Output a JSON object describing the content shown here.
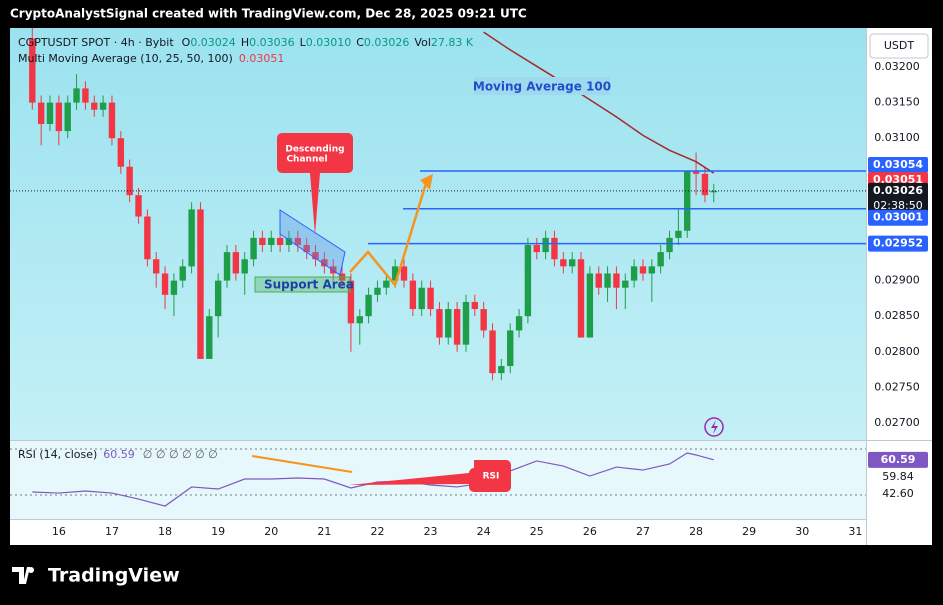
{
  "header": {
    "title": "CryptoAnalystSignal created with TradingView.com, Dec 28, 2025 09:21 UTC",
    "brand": "TradingView"
  },
  "chart_data": {
    "type": "candlestick",
    "symbol": "CGPTUSDT SPOT · 4h · Bybit",
    "ohlc_legend": [
      {
        "key": "O",
        "value": "0.03024"
      },
      {
        "key": "H",
        "value": "0.03036"
      },
      {
        "key": "L",
        "value": "0.03010"
      },
      {
        "key": "C",
        "value": "0.03026"
      },
      {
        "key": "Vol",
        "value": "27.83 K"
      }
    ],
    "indicator": "Multi Moving Average (10, 25, 50, 100)",
    "indicator_value": "0.03051",
    "currency": "USDT",
    "up_color": "#1f9e49",
    "down_color": "#f23645",
    "x": [
      15.5,
      15.667,
      15.833,
      16,
      16.167,
      16.333,
      16.5,
      16.667,
      16.833,
      17,
      17.167,
      17.333,
      17.5,
      17.667,
      17.833,
      18,
      18.167,
      18.333,
      18.5,
      18.667,
      18.833,
      19,
      19.167,
      19.333,
      19.5,
      19.667,
      19.833,
      20,
      20.167,
      20.333,
      20.5,
      20.667,
      20.833,
      21,
      21.167,
      21.333,
      21.5,
      21.667,
      21.833,
      22,
      22.167,
      22.333,
      22.5,
      22.667,
      22.833,
      23,
      23.167,
      23.333,
      23.5,
      23.667,
      23.833,
      24,
      24.167,
      24.333,
      24.5,
      24.667,
      24.833,
      25,
      25.167,
      25.333,
      25.5,
      25.667,
      25.833,
      26,
      26.167,
      26.333,
      26.5,
      26.667,
      26.833,
      27,
      27.167,
      27.333,
      27.5,
      27.667,
      27.833,
      28,
      28.167,
      28.333
    ],
    "open": [
      0.0324,
      0.0315,
      0.0312,
      0.0315,
      0.0311,
      0.0315,
      0.0317,
      0.0315,
      0.0314,
      0.0315,
      0.031,
      0.0306,
      0.0302,
      0.0299,
      0.0293,
      0.0291,
      0.0288,
      0.029,
      0.0292,
      0.03,
      0.0279,
      0.0285,
      0.029,
      0.0294,
      0.0291,
      0.0293,
      0.0296,
      0.0295,
      0.0296,
      0.0295,
      0.0296,
      0.0295,
      0.0294,
      0.0293,
      0.0292,
      0.0291,
      0.029,
      0.0284,
      0.0285,
      0.0288,
      0.0289,
      0.029,
      0.0292,
      0.029,
      0.0286,
      0.0289,
      0.0286,
      0.0282,
      0.0286,
      0.0281,
      0.0287,
      0.0286,
      0.0283,
      0.0277,
      0.0278,
      0.0283,
      0.0285,
      0.0295,
      0.0294,
      0.0296,
      0.0293,
      0.0292,
      0.0293,
      0.0282,
      0.0291,
      0.0289,
      0.0291,
      0.0289,
      0.029,
      0.0292,
      0.0291,
      0.0292,
      0.0294,
      0.0296,
      0.0297,
      0.03054,
      0.0305,
      0.03024
    ],
    "high": [
      0.03255,
      0.0316,
      0.0316,
      0.0316,
      0.0316,
      0.0319,
      0.0318,
      0.0316,
      0.0316,
      0.0316,
      0.0311,
      0.0307,
      0.0303,
      0.03,
      0.0294,
      0.0292,
      0.0291,
      0.0293,
      0.0301,
      0.0301,
      0.0286,
      0.0291,
      0.0295,
      0.0295,
      0.0294,
      0.0297,
      0.0297,
      0.0297,
      0.0297,
      0.0297,
      0.0297,
      0.0296,
      0.0295,
      0.0294,
      0.0293,
      0.0292,
      0.0291,
      0.0286,
      0.0289,
      0.029,
      0.0291,
      0.0293,
      0.0293,
      0.0291,
      0.029,
      0.029,
      0.0287,
      0.0287,
      0.0287,
      0.0288,
      0.0288,
      0.0287,
      0.0284,
      0.0279,
      0.0284,
      0.0286,
      0.0296,
      0.0296,
      0.0297,
      0.0297,
      0.0294,
      0.0294,
      0.0294,
      0.0292,
      0.0292,
      0.0292,
      0.0292,
      0.0291,
      0.0293,
      0.0293,
      0.0293,
      0.0295,
      0.0297,
      0.03,
      0.03054,
      0.0308,
      0.0306,
      0.03036
    ],
    "low": [
      0.0314,
      0.0309,
      0.0311,
      0.0309,
      0.031,
      0.0314,
      0.0314,
      0.0313,
      0.0313,
      0.0309,
      0.0305,
      0.0301,
      0.0298,
      0.0292,
      0.0289,
      0.0286,
      0.0285,
      0.0289,
      0.0291,
      0.0279,
      0.0279,
      0.0282,
      0.0289,
      0.029,
      0.0288,
      0.0292,
      0.0294,
      0.0294,
      0.0294,
      0.0294,
      0.0294,
      0.0293,
      0.0292,
      0.0291,
      0.029,
      0.0289,
      0.028,
      0.0281,
      0.0284,
      0.0287,
      0.0288,
      0.0289,
      0.0289,
      0.0285,
      0.0285,
      0.0285,
      0.0281,
      0.0281,
      0.028,
      0.028,
      0.0285,
      0.0282,
      0.0276,
      0.0276,
      0.0277,
      0.0282,
      0.0284,
      0.0293,
      0.0293,
      0.0292,
      0.0291,
      0.0291,
      0.0282,
      0.0282,
      0.0288,
      0.0287,
      0.0286,
      0.0286,
      0.0289,
      0.029,
      0.0287,
      0.0291,
      0.0293,
      0.0295,
      0.0296,
      0.0302,
      0.0301,
      0.0301
    ],
    "close": [
      0.0315,
      0.0312,
      0.0315,
      0.0311,
      0.0315,
      0.0317,
      0.0315,
      0.0314,
      0.0315,
      0.031,
      0.0306,
      0.0302,
      0.0299,
      0.0293,
      0.0291,
      0.0288,
      0.029,
      0.0292,
      0.03,
      0.0279,
      0.0285,
      0.029,
      0.0294,
      0.0291,
      0.0293,
      0.0296,
      0.0295,
      0.0296,
      0.0295,
      0.0296,
      0.0295,
      0.0294,
      0.0293,
      0.0292,
      0.0291,
      0.029,
      0.0284,
      0.0285,
      0.0288,
      0.0289,
      0.029,
      0.0292,
      0.029,
      0.0286,
      0.0289,
      0.0286,
      0.0282,
      0.0286,
      0.0281,
      0.0287,
      0.0286,
      0.0283,
      0.0277,
      0.0278,
      0.0283,
      0.0285,
      0.0295,
      0.0294,
      0.0296,
      0.0293,
      0.0292,
      0.0293,
      0.0282,
      0.0291,
      0.0289,
      0.0291,
      0.0289,
      0.029,
      0.0292,
      0.0291,
      0.0292,
      0.0294,
      0.0296,
      0.0297,
      0.03054,
      0.0305,
      0.0302,
      0.03026
    ],
    "moving_average": {
      "color": "#a52a2a",
      "x": [
        24,
        24.5,
        25,
        25.5,
        26,
        26.5,
        27,
        27.5,
        28,
        28.333
      ],
      "values": [
        0.03249,
        0.03224,
        0.03201,
        0.03178,
        0.03154,
        0.0313,
        0.03104,
        0.03083,
        0.03067,
        0.03051
      ]
    },
    "levels": [
      {
        "value": 0.03054,
        "label": "0.03054"
      },
      {
        "value": 0.03001,
        "label": "0.03001"
      },
      {
        "value": 0.02952,
        "label": "0.02952"
      }
    ],
    "level_color": "#2962ff",
    "ma_label": {
      "value": 0.03051,
      "label": "0.03051"
    },
    "last_price": {
      "value": 0.03026,
      "label": "0.03026",
      "countdown": "02:38:50"
    },
    "xlim": [
      15.08,
      31.2
    ],
    "xticks": [
      16,
      17,
      18,
      19,
      20,
      21,
      22,
      23,
      24,
      25,
      26,
      27,
      28,
      29,
      30,
      31
    ],
    "ylim": [
      0.026761,
      0.032548
    ],
    "yticks": [
      {
        "value": 0.027,
        "label": "0.02700"
      },
      {
        "value": 0.0275,
        "label": "0.02750"
      },
      {
        "value": 0.028,
        "label": "0.02800"
      },
      {
        "value": 0.0285,
        "label": "0.02850"
      },
      {
        "value": 0.029,
        "label": "0.02900"
      },
      {
        "value": 0.031,
        "label": "0.03100"
      },
      {
        "value": 0.0315,
        "label": "0.03150"
      },
      {
        "value": 0.032,
        "label": "0.03200"
      }
    ],
    "annotations": {
      "moving_average": "Moving Average 100",
      "channel": [
        "Descending",
        "Channel"
      ],
      "support": "Support Area",
      "rsi": "RSI"
    },
    "rsi": {
      "label": "RSI (14, close)",
      "value_text": "60.59",
      "placeholders": "∅ ∅ ∅ ∅ ∅ ∅",
      "color": "#7e57c2",
      "ylim": [
        9.13,
        76.96
      ],
      "bands": [
        70,
        30
      ],
      "x": [
        15.5,
        16,
        16.5,
        17,
        17.5,
        18,
        18.5,
        19,
        19.5,
        20,
        20.5,
        21,
        21.5,
        22,
        22.5,
        23,
        23.5,
        24,
        24.5,
        25,
        25.5,
        26,
        26.5,
        27,
        27.5,
        27.833,
        28,
        28.333
      ],
      "values": [
        32.6,
        31.7,
        33.5,
        31.7,
        26.5,
        20.4,
        37,
        35.2,
        43.9,
        43.9,
        44.8,
        43.9,
        36.1,
        41.3,
        42.2,
        38.7,
        37,
        40.4,
        50.9,
        59.6,
        55.2,
        46.5,
        54.3,
        51.7,
        57,
        66.5,
        64.8,
        60.59
      ],
      "labels": [
        {
          "value": 60.59,
          "label": "60.59",
          "color": "#7e57c2"
        },
        {
          "value": 59.84,
          "label": "59.84",
          "color": "#ffffff"
        },
        {
          "value": 42.6,
          "label": "42.60",
          "color": "#ffffff"
        }
      ]
    }
  }
}
